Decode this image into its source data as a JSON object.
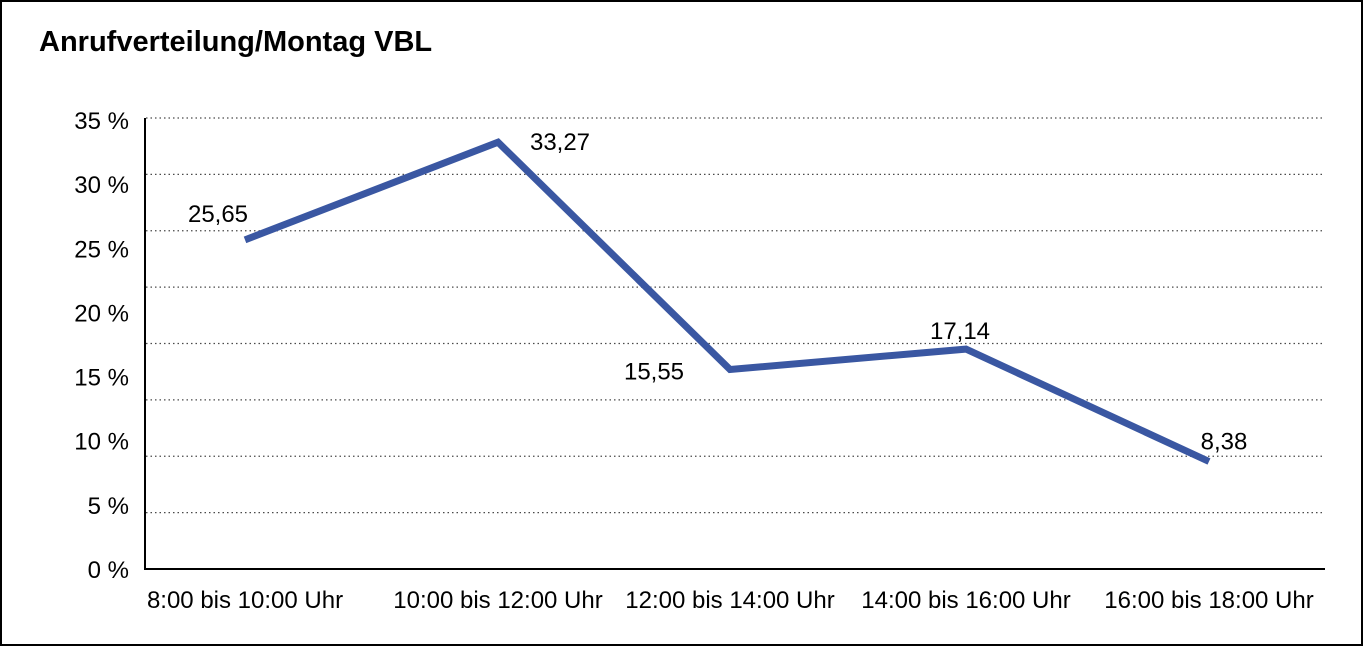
{
  "title": "Anrufverteilung/Montag VBL",
  "chart_data": {
    "type": "line",
    "title": "Anrufverteilung/Montag VBL",
    "categories": [
      "8:00 bis 10:00 Uhr",
      "10:00 bis 12:00 Uhr",
      "12:00 bis 14:00 Uhr",
      "14:00 bis 16:00 Uhr",
      "16:00 bis 18:00 Uhr"
    ],
    "values": [
      25.65,
      33.27,
      15.55,
      17.14,
      8.38
    ],
    "data_labels": [
      "25,65",
      "33,27",
      "15,55",
      "17,14",
      "8,38"
    ],
    "y_tick_labels_top_down": [
      "35 %",
      "30 %",
      "25 %",
      "20 %",
      "15 %",
      "10 %",
      "5 %",
      "0 %"
    ],
    "ylim": [
      0,
      35
    ],
    "xlabel": "",
    "ylabel": "",
    "legend": "none",
    "grid": "dotted-horizontal",
    "line_color": "#3A57A2",
    "grid_color": "#4a4a4a",
    "axis_color": "#000000",
    "text_color": "#000000"
  }
}
